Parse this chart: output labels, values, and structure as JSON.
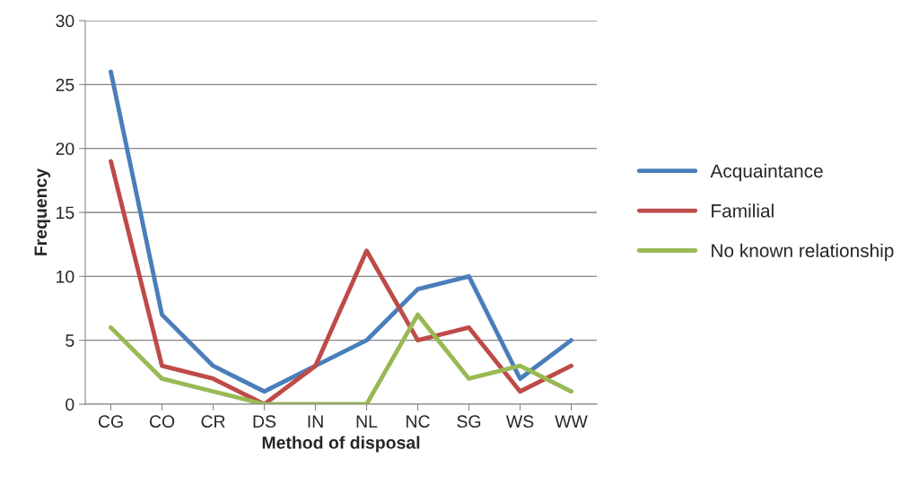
{
  "chart_data": {
    "type": "line",
    "xlabel": "Method of disposal",
    "ylabel": "Frequency",
    "categories": [
      "CG",
      "CO",
      "CR",
      "DS",
      "IN",
      "NL",
      "NC",
      "SG",
      "WS",
      "WW"
    ],
    "series": [
      {
        "name": "Acquaintance",
        "color": "#4a7ebb",
        "values": [
          26,
          7,
          3,
          1,
          3,
          5,
          9,
          10,
          2,
          5
        ]
      },
      {
        "name": "Familial",
        "color": "#be4b48",
        "values": [
          19,
          3,
          2,
          0,
          3,
          12,
          5,
          6,
          1,
          3
        ]
      },
      {
        "name": "No known relationship",
        "color": "#98b954",
        "values": [
          6,
          2,
          1,
          0,
          0,
          0,
          7,
          2,
          3,
          1
        ]
      }
    ],
    "ylim": [
      0,
      30
    ],
    "yticks": [
      0,
      5,
      10,
      15,
      20,
      25,
      30
    ],
    "grid": "y",
    "legend": "right",
    "marker": "none",
    "line_style": "solid"
  }
}
